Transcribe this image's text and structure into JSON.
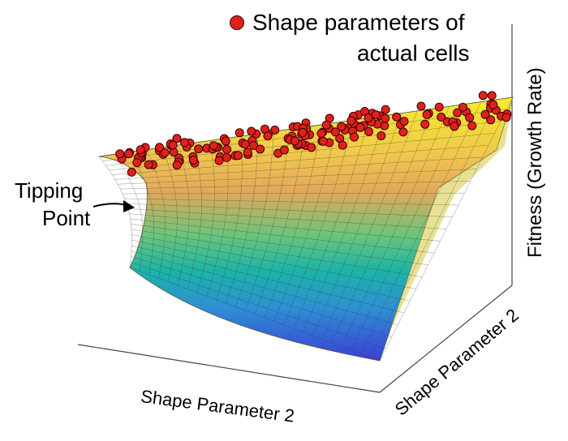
{
  "legend": {
    "line1": "Shape parameters of",
    "line2": "actual cells",
    "marker_color": "#e0201c"
  },
  "annotation": {
    "line1": "Tipping",
    "line2": "Point"
  },
  "axes": {
    "x_label": "Shape Parameter 2",
    "y_label": "Shape Parameter 2",
    "z_label": "Fitness (Growth Rate)"
  },
  "colors": {
    "surface_high": "#f6f200",
    "surface_mid": "#1fb7a0",
    "surface_low": "#3d3fd6",
    "points": "#e0201c"
  }
}
